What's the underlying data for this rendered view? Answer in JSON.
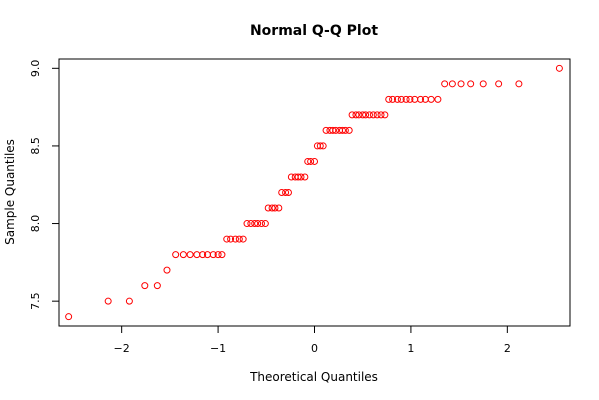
{
  "chart_data": {
    "type": "scatter",
    "title": "Normal Q-Q Plot",
    "xlabel": "Theoretical Quantiles",
    "ylabel": "Sample Quantiles",
    "xlim": [
      -2.65,
      2.65
    ],
    "ylim": [
      7.34,
      9.06
    ],
    "grid": false,
    "legend": "none",
    "point_color": "#ff0000",
    "x_ticks": [
      {
        "value": -2,
        "label": "−2"
      },
      {
        "value": -1,
        "label": "−1"
      },
      {
        "value": 0,
        "label": "0"
      },
      {
        "value": 1,
        "label": "1"
      },
      {
        "value": 2,
        "label": "2"
      }
    ],
    "y_ticks": [
      {
        "value": 7.5,
        "label": "7.5"
      },
      {
        "value": 8.0,
        "label": "8.0"
      },
      {
        "value": 8.5,
        "label": "8.5"
      },
      {
        "value": 9.0,
        "label": "9.0"
      }
    ],
    "points": [
      [
        -2.55,
        7.4
      ],
      [
        -2.14,
        7.5
      ],
      [
        -1.92,
        7.5
      ],
      [
        -1.76,
        7.6
      ],
      [
        -1.63,
        7.6
      ],
      [
        -1.53,
        7.7
      ],
      [
        -1.44,
        7.8
      ],
      [
        -1.36,
        7.8
      ],
      [
        -1.29,
        7.8
      ],
      [
        -1.22,
        7.8
      ],
      [
        -1.16,
        7.8
      ],
      [
        -1.11,
        7.8
      ],
      [
        -1.05,
        7.8
      ],
      [
        -1.0,
        7.8
      ],
      [
        -0.96,
        7.8
      ],
      [
        -0.91,
        7.9
      ],
      [
        -0.87,
        7.9
      ],
      [
        -0.82,
        7.9
      ],
      [
        -0.78,
        7.9
      ],
      [
        -0.74,
        7.9
      ],
      [
        -0.7,
        8.0
      ],
      [
        -0.66,
        8.0
      ],
      [
        -0.62,
        8.0
      ],
      [
        -0.59,
        8.0
      ],
      [
        -0.55,
        8.0
      ],
      [
        -0.51,
        8.0
      ],
      [
        -0.48,
        8.1
      ],
      [
        -0.44,
        8.1
      ],
      [
        -0.41,
        8.1
      ],
      [
        -0.37,
        8.1
      ],
      [
        -0.34,
        8.2
      ],
      [
        -0.3,
        8.2
      ],
      [
        -0.27,
        8.2
      ],
      [
        -0.24,
        8.3
      ],
      [
        -0.2,
        8.3
      ],
      [
        -0.17,
        8.3
      ],
      [
        -0.14,
        8.3
      ],
      [
        -0.1,
        8.3
      ],
      [
        -0.07,
        8.4
      ],
      [
        -0.04,
        8.4
      ],
      [
        0.0,
        8.4
      ],
      [
        0.03,
        8.5
      ],
      [
        0.06,
        8.5
      ],
      [
        0.09,
        8.5
      ],
      [
        0.12,
        8.6
      ],
      [
        0.16,
        8.6
      ],
      [
        0.19,
        8.6
      ],
      [
        0.22,
        8.6
      ],
      [
        0.26,
        8.6
      ],
      [
        0.29,
        8.6
      ],
      [
        0.32,
        8.6
      ],
      [
        0.36,
        8.6
      ],
      [
        0.39,
        8.7
      ],
      [
        0.43,
        8.7
      ],
      [
        0.46,
        8.7
      ],
      [
        0.5,
        8.7
      ],
      [
        0.53,
        8.7
      ],
      [
        0.57,
        8.7
      ],
      [
        0.61,
        8.7
      ],
      [
        0.65,
        8.7
      ],
      [
        0.69,
        8.7
      ],
      [
        0.73,
        8.7
      ],
      [
        0.77,
        8.8
      ],
      [
        0.81,
        8.8
      ],
      [
        0.86,
        8.8
      ],
      [
        0.9,
        8.8
      ],
      [
        0.95,
        8.8
      ],
      [
        0.99,
        8.8
      ],
      [
        1.04,
        8.8
      ],
      [
        1.1,
        8.8
      ],
      [
        1.15,
        8.8
      ],
      [
        1.21,
        8.8
      ],
      [
        1.28,
        8.8
      ],
      [
        1.35,
        8.9
      ],
      [
        1.43,
        8.9
      ],
      [
        1.52,
        8.9
      ],
      [
        1.62,
        8.9
      ],
      [
        1.75,
        8.9
      ],
      [
        1.91,
        8.9
      ],
      [
        2.12,
        8.9
      ],
      [
        2.54,
        9.0
      ]
    ]
  }
}
